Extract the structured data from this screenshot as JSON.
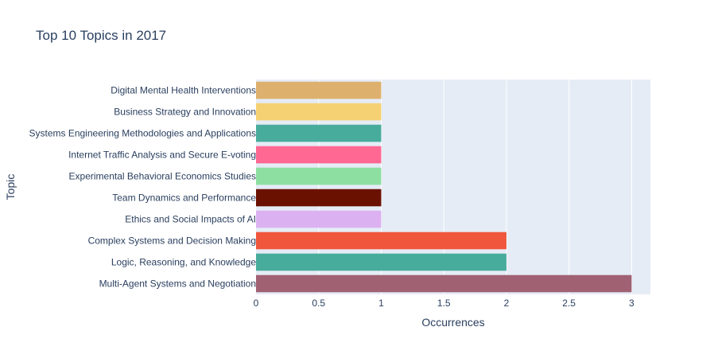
{
  "chart_data": {
    "type": "bar",
    "orientation": "horizontal",
    "title": "Top 10 Topics in 2017",
    "xlabel": "Occurrences",
    "ylabel": "Topic",
    "xlim": [
      0,
      3.15
    ],
    "xticks": [
      0,
      0.5,
      1,
      1.5,
      2,
      2.5,
      3
    ],
    "xtick_labels": [
      "0",
      "0.5",
      "1",
      "1.5",
      "2",
      "2.5",
      "3"
    ],
    "grid": true,
    "legend": "none",
    "categories": [
      "Digital Mental Health Interventions",
      "Business Strategy and Innovation",
      "Systems Engineering Methodologies and Applications",
      "Internet Traffic Analysis and Secure E-voting",
      "Experimental Behavioral Economics Studies",
      "Team Dynamics and Performance",
      "Ethics and Social Impacts of AI",
      "Complex Systems and Decision Making",
      "Logic, Reasoning, and Knowledge",
      "Multi-Agent Systems and Negotiation"
    ],
    "values": [
      1,
      1,
      1,
      1,
      1,
      1,
      1,
      2,
      2,
      3
    ],
    "colors": [
      "#DEB06E",
      "#F5D173",
      "#48AC9C",
      "#FE6893",
      "#8CDFA0",
      "#6B1101",
      "#DCB1F1",
      "#F0563C",
      "#48AC9C",
      "#A06173"
    ],
    "plot_bg": "#E5ECF6",
    "text_color": "#2A3F5F"
  }
}
